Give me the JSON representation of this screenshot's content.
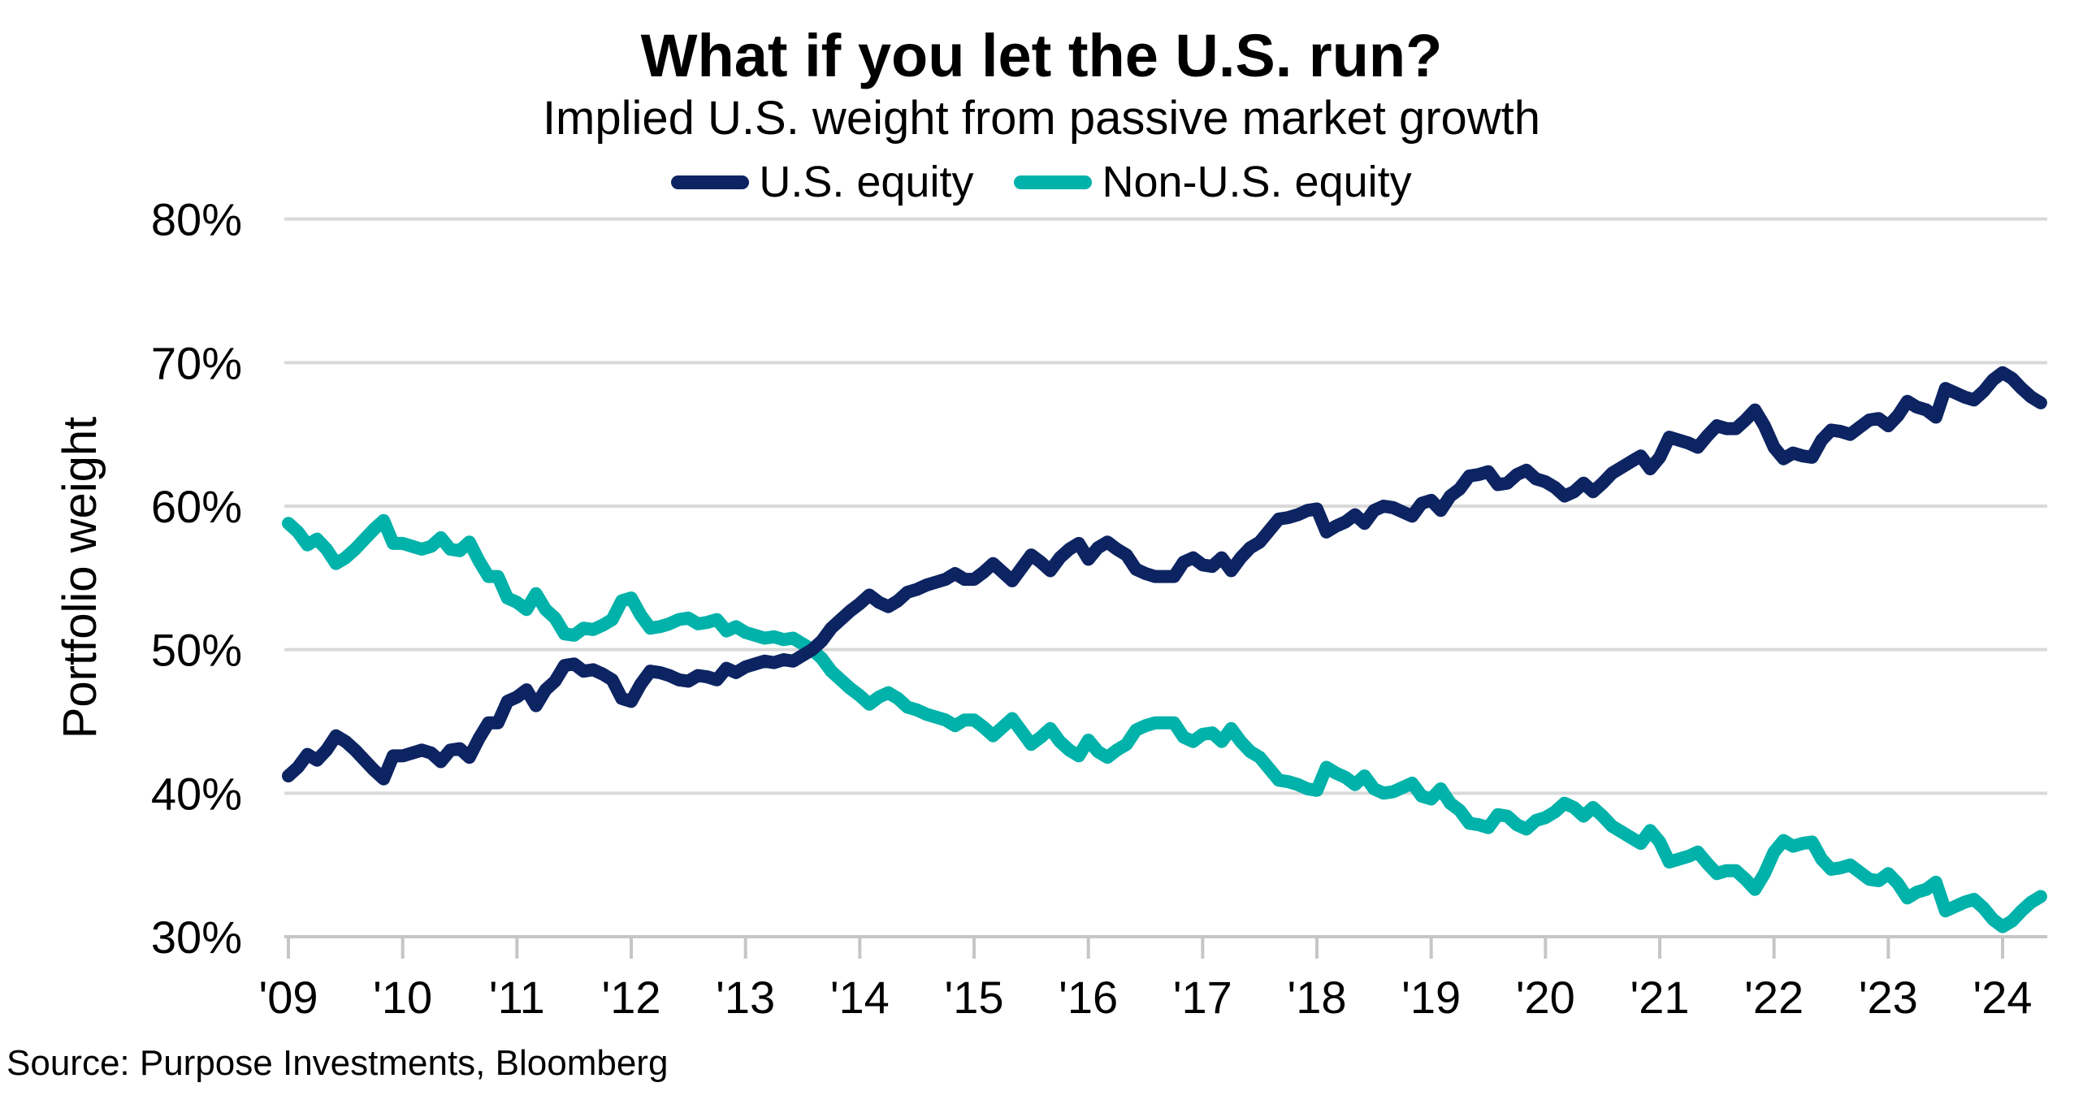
{
  "header": {
    "title": "What if you let the U.S. run?",
    "subtitle": "Implied U.S. weight from passive market growth"
  },
  "footer": {
    "source": "Source: Purpose Investments, Bloomberg"
  },
  "colors": {
    "us_equity": "#0d2462",
    "non_us_equity": "#00b2a9",
    "gridline": "#d9d9d9",
    "axis_line": "#c6c6c6",
    "text": "#000000",
    "background": "#ffffff"
  },
  "chart_data": {
    "type": "line",
    "title": "What if you let the U.S. run?",
    "subtitle": "Implied U.S. weight from passive market growth",
    "xlabel": "",
    "ylabel": "Portfolio weight",
    "ylim": [
      30,
      80
    ],
    "grid": "horizontal",
    "legend_position": "top-center",
    "y_ticks": [
      80,
      70,
      60,
      50,
      40,
      30
    ],
    "y_tick_labels": [
      "80%",
      "70%",
      "60%",
      "50%",
      "40%",
      "30%"
    ],
    "x_tick_labels": [
      "'09",
      "'10",
      "'11",
      "'12",
      "'13",
      "'14",
      "'15",
      "'16",
      "'17",
      "'18",
      "'19",
      "'20",
      "'21",
      "'22",
      "'23",
      "'24"
    ],
    "x_start_year": 2009,
    "points_per_year": 12,
    "n_points": 185,
    "x_range_note": "monthly data, Jan 2009 through May 2024",
    "series": [
      {
        "name": "U.S. equity",
        "color": "#0d2462",
        "values": [
          41.2,
          41.8,
          42.7,
          42.3,
          43.0,
          44.0,
          43.6,
          43.0,
          42.3,
          41.6,
          41.0,
          42.6,
          42.6,
          42.8,
          43.0,
          42.8,
          42.2,
          43.0,
          43.1,
          42.5,
          43.8,
          44.9,
          44.9,
          46.4,
          46.7,
          47.2,
          46.1,
          47.2,
          47.8,
          48.9,
          49.0,
          48.5,
          48.6,
          48.3,
          47.9,
          46.6,
          46.4,
          47.6,
          48.5,
          48.4,
          48.2,
          47.9,
          47.8,
          48.2,
          48.1,
          47.9,
          48.7,
          48.4,
          48.8,
          49.0,
          49.2,
          49.1,
          49.3,
          49.2,
          49.6,
          50.0,
          50.6,
          51.5,
          52.1,
          52.7,
          53.2,
          53.8,
          53.3,
          53.0,
          53.4,
          54.0,
          54.2,
          54.5,
          54.7,
          54.9,
          55.3,
          54.9,
          54.9,
          55.4,
          56.0,
          55.4,
          54.8,
          55.7,
          56.6,
          56.1,
          55.5,
          56.4,
          57.0,
          57.4,
          56.3,
          57.1,
          57.5,
          57.0,
          56.6,
          55.6,
          55.3,
          55.1,
          55.1,
          55.1,
          56.1,
          56.4,
          55.9,
          55.8,
          56.4,
          55.5,
          56.4,
          57.1,
          57.5,
          58.3,
          59.1,
          59.2,
          59.4,
          59.7,
          59.8,
          58.2,
          58.6,
          58.9,
          59.4,
          58.8,
          59.7,
          60.0,
          59.9,
          59.6,
          59.3,
          60.2,
          60.4,
          59.7,
          60.7,
          61.2,
          62.1,
          62.2,
          62.4,
          61.5,
          61.6,
          62.2,
          62.5,
          61.9,
          61.7,
          61.3,
          60.7,
          61.0,
          61.6,
          61.0,
          61.6,
          62.3,
          62.7,
          63.1,
          63.5,
          62.6,
          63.4,
          64.8,
          64.6,
          64.4,
          64.1,
          64.9,
          65.6,
          65.4,
          65.4,
          66.0,
          66.7,
          65.6,
          64.1,
          63.3,
          63.7,
          63.5,
          63.4,
          64.6,
          65.3,
          65.2,
          65.0,
          65.5,
          66.0,
          66.1,
          65.6,
          66.3,
          67.3,
          66.9,
          66.7,
          66.2,
          68.2,
          67.9,
          67.6,
          67.4,
          68.0,
          68.8,
          69.3,
          68.9,
          68.2,
          67.6,
          67.2
        ]
      },
      {
        "name": "Non-U.S. equity",
        "color": "#00b2a9",
        "values": [
          58.8,
          58.2,
          57.3,
          57.7,
          57.0,
          56.0,
          56.4,
          57.0,
          57.7,
          58.4,
          59.0,
          57.4,
          57.4,
          57.2,
          57.0,
          57.2,
          57.8,
          57.0,
          56.9,
          57.5,
          56.2,
          55.1,
          55.1,
          53.6,
          53.3,
          52.8,
          53.9,
          52.8,
          52.2,
          51.1,
          51.0,
          51.5,
          51.4,
          51.7,
          52.1,
          53.4,
          53.6,
          52.4,
          51.5,
          51.6,
          51.8,
          52.1,
          52.2,
          51.8,
          51.9,
          52.1,
          51.3,
          51.6,
          51.2,
          51.0,
          50.8,
          50.9,
          50.7,
          50.8,
          50.4,
          50.0,
          49.4,
          48.5,
          47.9,
          47.3,
          46.8,
          46.2,
          46.7,
          47.0,
          46.6,
          46.0,
          45.8,
          45.5,
          45.3,
          45.1,
          44.7,
          45.1,
          45.1,
          44.6,
          44.0,
          44.6,
          45.2,
          44.3,
          43.4,
          43.9,
          44.5,
          43.6,
          43.0,
          42.6,
          43.7,
          42.9,
          42.5,
          43.0,
          43.4,
          44.4,
          44.7,
          44.9,
          44.9,
          44.9,
          43.9,
          43.6,
          44.1,
          44.2,
          43.6,
          44.5,
          43.6,
          42.9,
          42.5,
          41.7,
          40.9,
          40.8,
          40.6,
          40.3,
          40.2,
          41.8,
          41.4,
          41.1,
          40.6,
          41.2,
          40.3,
          40.0,
          40.1,
          40.4,
          40.7,
          39.8,
          39.6,
          40.3,
          39.3,
          38.8,
          37.9,
          37.8,
          37.6,
          38.5,
          38.4,
          37.8,
          37.5,
          38.1,
          38.3,
          38.7,
          39.3,
          39.0,
          38.4,
          39.0,
          38.4,
          37.7,
          37.3,
          36.9,
          36.5,
          37.4,
          36.6,
          35.2,
          35.4,
          35.6,
          35.9,
          35.1,
          34.4,
          34.6,
          34.6,
          34.0,
          33.3,
          34.4,
          35.9,
          36.7,
          36.3,
          36.5,
          36.6,
          35.4,
          34.7,
          34.8,
          35.0,
          34.5,
          34.0,
          33.9,
          34.4,
          33.7,
          32.7,
          33.1,
          33.3,
          33.8,
          31.8,
          32.1,
          32.4,
          32.6,
          32.0,
          31.2,
          30.7,
          31.1,
          31.8,
          32.4,
          32.8
        ]
      }
    ]
  }
}
